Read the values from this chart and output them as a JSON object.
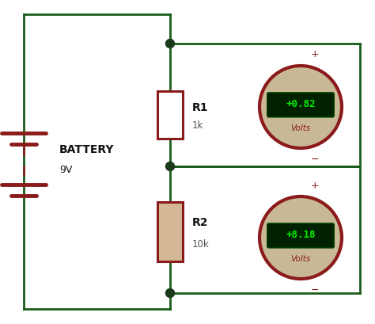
{
  "bg_color": "#ffffff",
  "wire_color": "#1a5c1a",
  "resistor_color": "#8b1a1a",
  "battery_color": "#8b1a1a",
  "dot_color": "#1a3a1a",
  "meter_border_color": "#8b1a1a",
  "meter_bg_color": "#c8b896",
  "meter_screen_color": "#002200",
  "meter_text_color": "#00ee00",
  "meter_label_color": "#8b1a1a",
  "plus_minus_color": "#8b1a1a",
  "label_color": "#111111",
  "battery_label": "BATTERY",
  "battery_voltage": "9V",
  "r1_label": "R1",
  "r1_value": "1k",
  "r2_label": "R2",
  "r2_value": "10k",
  "v1_reading": "+0.82",
  "v2_reading": "+8.18",
  "volts_label": "Volts",
  "wire_lw": 2.0,
  "figw": 4.74,
  "figh": 4.09
}
